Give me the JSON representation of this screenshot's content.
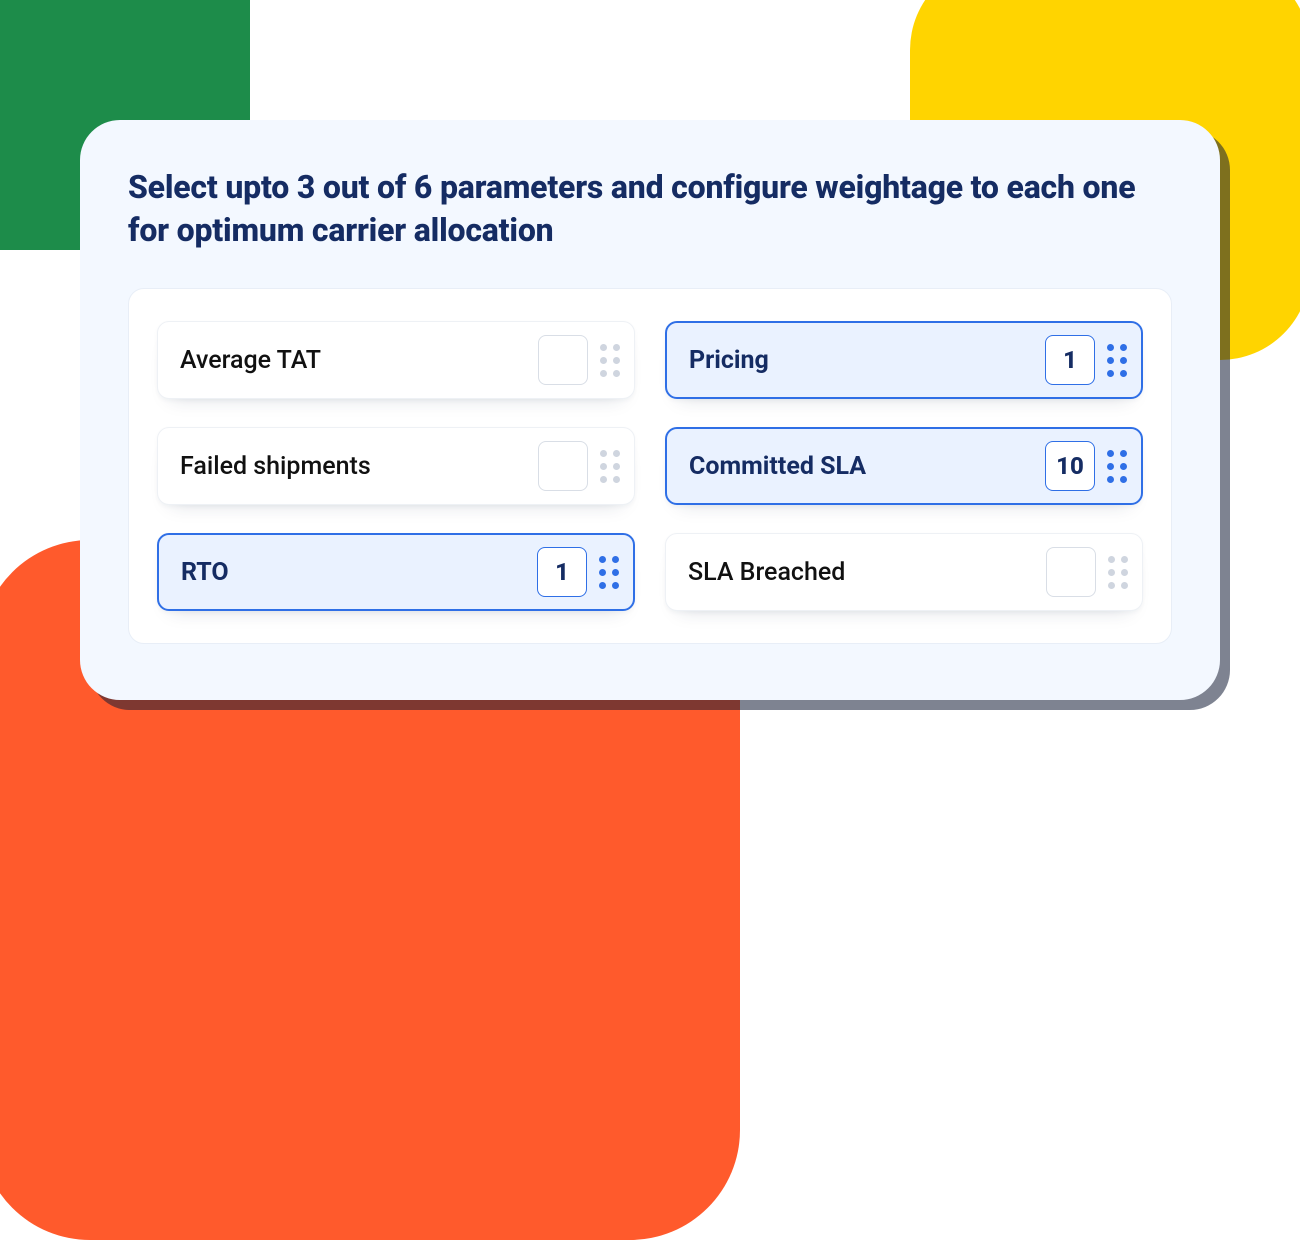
{
  "decor": {
    "green": "#1d8c4a",
    "yellow": "#ffd400",
    "orange": "#ff5a2c"
  },
  "panel": {
    "title": "Select upto 3 out of 6 parameters and configure weightage to each one for  optimum carrier allocation",
    "background": "#f3f8ff",
    "title_color": "#152c63",
    "accent_color": "#2f6fe6"
  },
  "parameters": [
    {
      "label": "Average TAT",
      "value": "",
      "selected": false
    },
    {
      "label": "Pricing",
      "value": "1",
      "selected": true
    },
    {
      "label": "Failed shipments",
      "value": "",
      "selected": false
    },
    {
      "label": "Committed SLA",
      "value": "10",
      "selected": true
    },
    {
      "label": "RTO",
      "value": "1",
      "selected": true
    },
    {
      "label": "SLA Breached",
      "value": "",
      "selected": false
    }
  ]
}
